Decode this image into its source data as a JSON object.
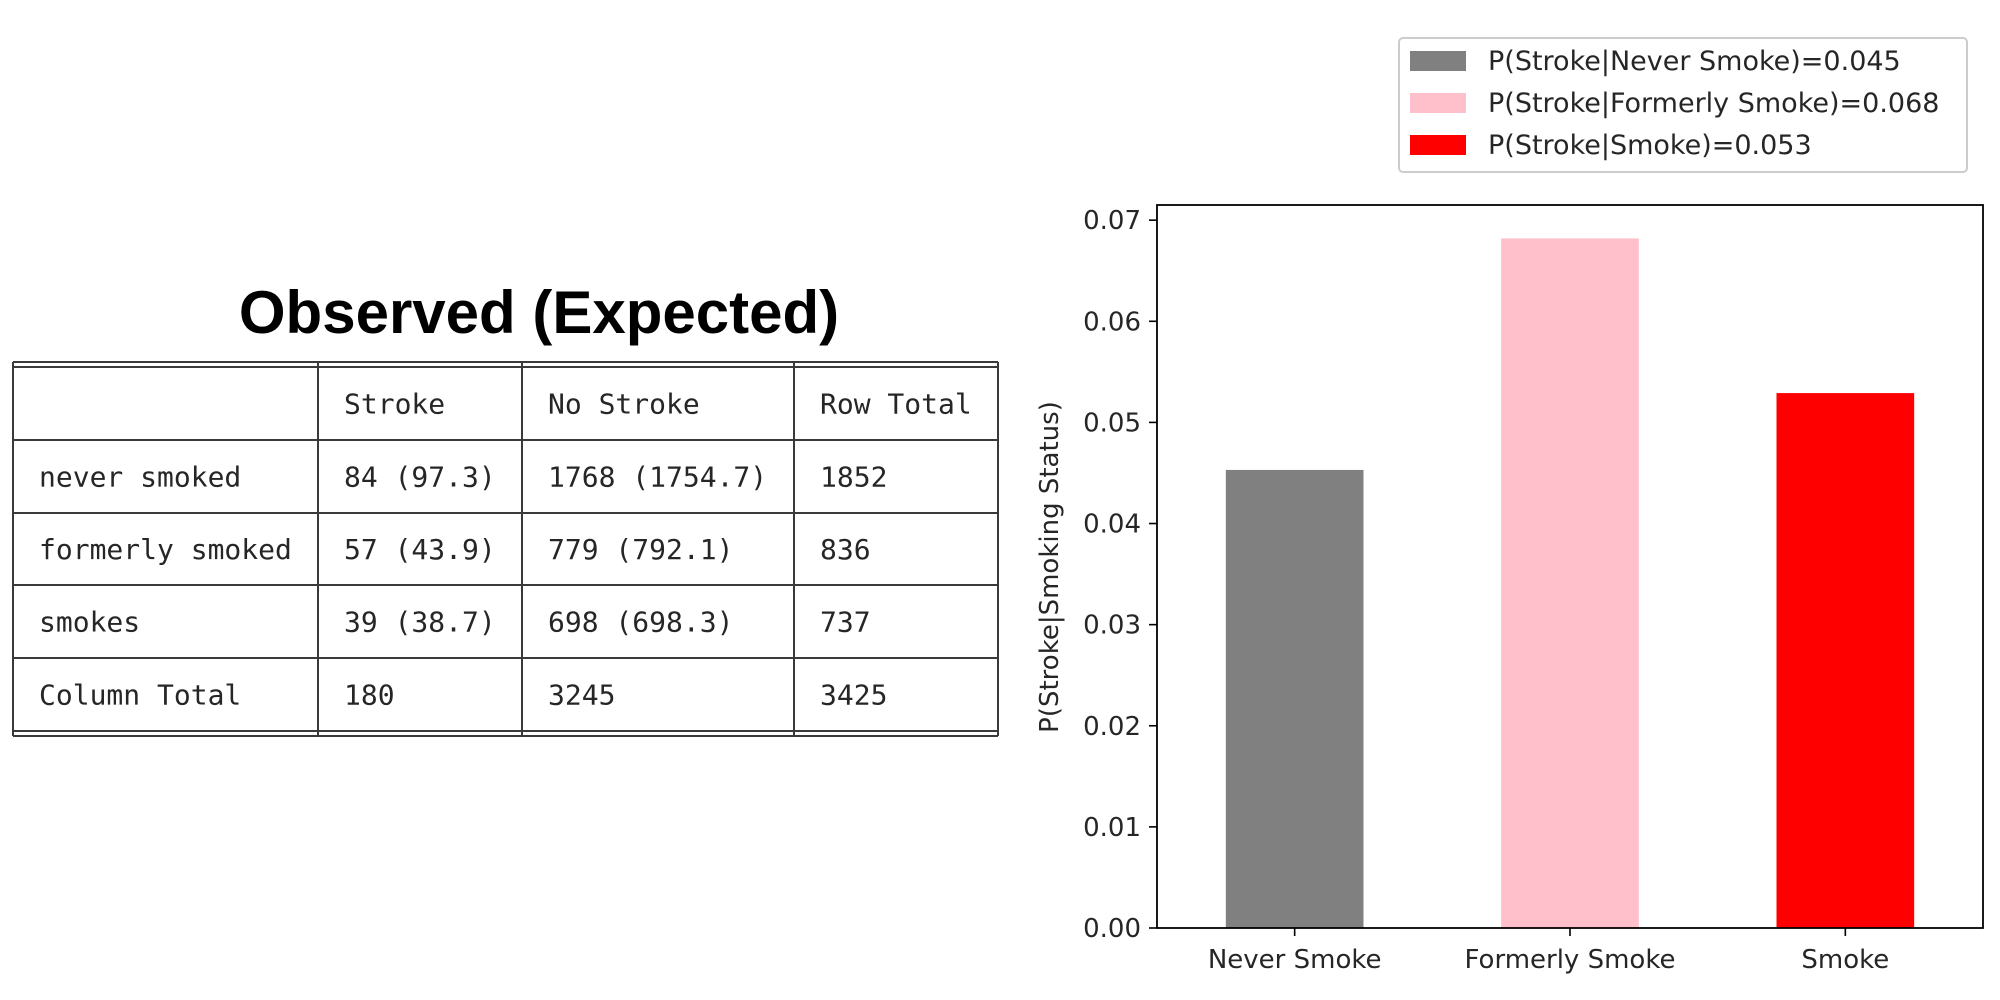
{
  "table": {
    "title": "Observed (Expected)",
    "columns": [
      "",
      "Stroke",
      "No Stroke",
      "Row Total"
    ],
    "rows": [
      [
        "never smoked",
        "84 (97.3)",
        "1768 (1754.7)",
        "1852"
      ],
      [
        "formerly smoked",
        "57 (43.9)",
        "779 (792.1)",
        "836"
      ],
      [
        "smokes",
        "39 (38.7)",
        "698 (698.3)",
        "737"
      ],
      [
        "Column Total",
        "180",
        "3245",
        "3425"
      ]
    ]
  },
  "chart_data": {
    "type": "bar",
    "categories": [
      "Never Smoke",
      "Formerly Smoke",
      "Smoke"
    ],
    "values": [
      0.0453,
      0.0682,
      0.0529
    ],
    "colors": [
      "#808080",
      "#ffc0cb",
      "#ff0000"
    ],
    "legend": [
      "P(Stroke|Never Smoke)=0.045",
      "P(Stroke|Formerly Smoke)=0.068",
      "P(Stroke|Smoke)=0.053"
    ],
    "legend_position": "above-top-right",
    "title": "",
    "xlabel": "",
    "ylabel": "P(Stroke|Smoking Status)",
    "ylim": [
      0,
      0.0715
    ],
    "yticks": [
      "0.00",
      "0.01",
      "0.02",
      "0.03",
      "0.04",
      "0.05",
      "0.06",
      "0.07"
    ],
    "grid": false
  }
}
